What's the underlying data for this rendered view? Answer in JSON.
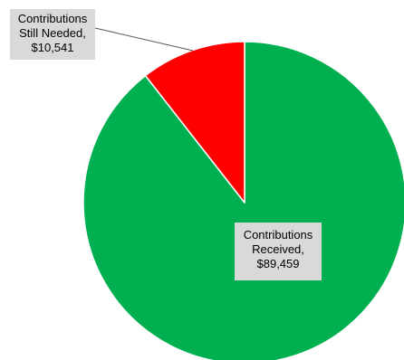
{
  "chart_data": {
    "type": "pie",
    "title": "",
    "slices": [
      {
        "name": "Contributions Received",
        "value": 89459,
        "color": "#00b050",
        "label_lines": [
          "Contributions",
          "Received,",
          "$89,459"
        ]
      },
      {
        "name": "Contributions Still Needed",
        "value": 10541,
        "color": "#ff0000",
        "label_lines": [
          "Contributions",
          "Still Needed,",
          "$10,541"
        ]
      }
    ],
    "start_angle_deg": 0,
    "direction": "clockwise",
    "legend": "none"
  }
}
